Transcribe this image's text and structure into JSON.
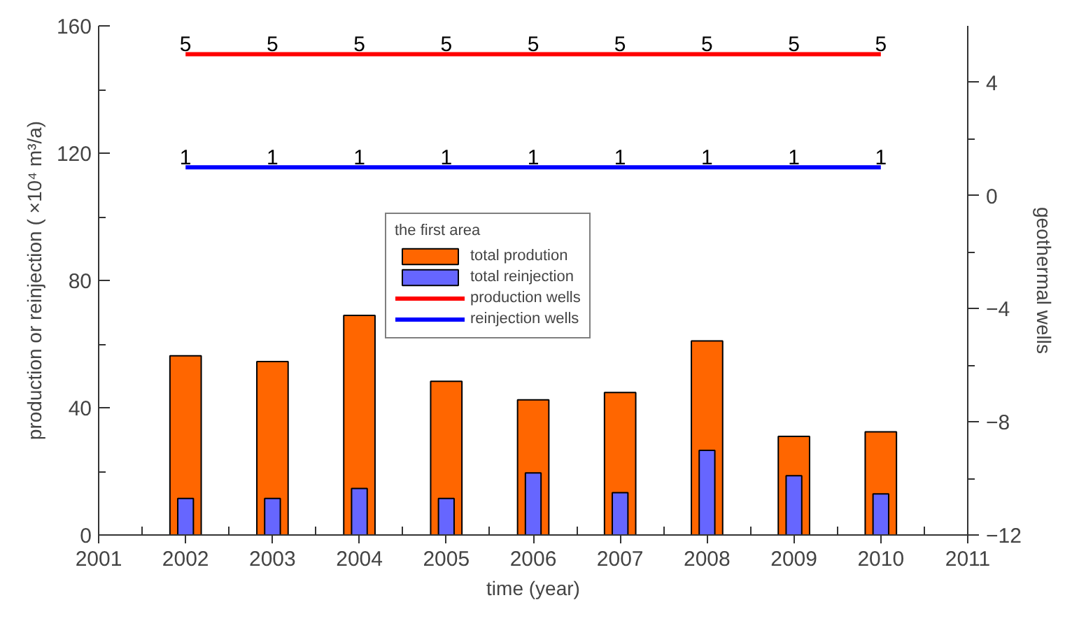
{
  "chart_data": {
    "type": "bar",
    "xlabel": "time (year)",
    "ylabel": "production or reinjection ( ×10⁴ m³/a)",
    "y2label": "geothermal wells",
    "legend_title": "the first area",
    "series": [
      {
        "name": "total prodution",
        "color": "#ff6600",
        "x": [
          2002,
          2003,
          2004,
          2005,
          2006,
          2007,
          2008,
          2009,
          2010
        ],
        "values": [
          56.3,
          54.5,
          69,
          48.3,
          42.5,
          44.8,
          61,
          31,
          32.4
        ]
      },
      {
        "name": "total reinjection",
        "color": "#6666ff",
        "x": [
          2002,
          2003,
          2004,
          2005,
          2006,
          2007,
          2008,
          2009,
          2010
        ],
        "values": [
          11.5,
          11.5,
          14.6,
          11.5,
          19.5,
          13.3,
          26.6,
          18.6,
          12.9
        ]
      },
      {
        "name": "production wells",
        "type": "line",
        "axis": "y2",
        "color": "#ff0000",
        "x": [
          2002,
          2003,
          2004,
          2005,
          2006,
          2007,
          2008,
          2009,
          2010
        ],
        "values": [
          5,
          5,
          5,
          5,
          5,
          5,
          5,
          5,
          5
        ],
        "value_labels": [
          "5",
          "5",
          "5",
          "5",
          "5",
          "5",
          "5",
          "5",
          "5"
        ]
      },
      {
        "name": "reinjection wells",
        "type": "line",
        "axis": "y2",
        "color": "#0000ff",
        "x": [
          2002,
          2003,
          2004,
          2005,
          2006,
          2007,
          2008,
          2009,
          2010
        ],
        "values": [
          1,
          1,
          1,
          1,
          1,
          1,
          1,
          1,
          1
        ],
        "value_labels": [
          "1",
          "1",
          "1",
          "1",
          "1",
          "1",
          "1",
          "1",
          "1"
        ]
      }
    ],
    "xlim": [
      2001,
      2011
    ],
    "xticks": [
      2001,
      2002,
      2003,
      2004,
      2005,
      2006,
      2007,
      2008,
      2009,
      2010,
      2011
    ],
    "ylim": [
      0,
      160
    ],
    "yticks": [
      0,
      40,
      80,
      120,
      160
    ],
    "y2lim": [
      -12,
      6
    ],
    "y2ticks": [
      -12,
      -8,
      -4,
      0,
      4
    ],
    "grid": false,
    "legend": "center",
    "marker": "none",
    "line_style": "solid"
  }
}
